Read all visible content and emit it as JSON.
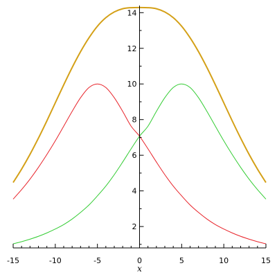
{
  "chart_data": {
    "type": "line",
    "xlabel": "x",
    "ylabel": "",
    "xlim": [
      -15,
      15
    ],
    "ylim": [
      0.8,
      14.4
    ],
    "x_ticks": [
      -15,
      -10,
      -5,
      0,
      5,
      10,
      15
    ],
    "x_tick_labels": [
      "-15",
      "-10",
      "-5",
      "0",
      "5",
      "10",
      "15"
    ],
    "y_ticks": [
      2,
      4,
      6,
      8,
      10,
      12,
      14
    ],
    "y_tick_labels": [
      "2",
      "4",
      "6",
      "8",
      "10",
      "12",
      "14"
    ],
    "grid": false,
    "x": [
      -15,
      -14,
      -13,
      -12,
      -11,
      -10,
      -9,
      -8,
      -7,
      -6,
      -5,
      -4,
      -3,
      -2,
      -1,
      0,
      1,
      2,
      3,
      4,
      5,
      6,
      7,
      8,
      9,
      10,
      11,
      12,
      13,
      14,
      15
    ],
    "series": [
      {
        "color": "#d4a017",
        "values": [
          4.47,
          5.22,
          6.05,
          6.96,
          7.93,
          8.94,
          9.95,
          10.92,
          11.81,
          12.59,
          13.24,
          13.72,
          14.04,
          14.22,
          14.28,
          14.29,
          14.28,
          14.22,
          14.04,
          13.72,
          13.24,
          12.59,
          11.81,
          10.92,
          9.95,
          8.94,
          7.93,
          6.96,
          6.05,
          5.22,
          4.47
        ]
      },
      {
        "color": "#e8232a",
        "values": [
          3.54,
          4.07,
          4.66,
          5.32,
          6.04,
          6.81,
          7.63,
          8.46,
          9.23,
          9.8,
          10.0,
          9.8,
          9.23,
          8.46,
          7.63,
          7.07,
          6.36,
          5.62,
          4.91,
          4.27,
          3.72,
          3.21,
          2.79,
          2.42,
          2.11,
          1.86,
          1.64,
          1.45,
          1.29,
          1.15,
          1.03
        ]
      },
      {
        "color": "#33cc33",
        "values": [
          1.03,
          1.15,
          1.29,
          1.45,
          1.64,
          1.86,
          2.11,
          2.42,
          2.79,
          3.21,
          3.72,
          4.27,
          4.91,
          5.62,
          6.36,
          7.07,
          7.63,
          8.46,
          9.23,
          9.8,
          10.0,
          9.8,
          9.23,
          8.46,
          7.63,
          6.81,
          6.04,
          5.32,
          4.66,
          4.07,
          3.54
        ]
      }
    ]
  }
}
